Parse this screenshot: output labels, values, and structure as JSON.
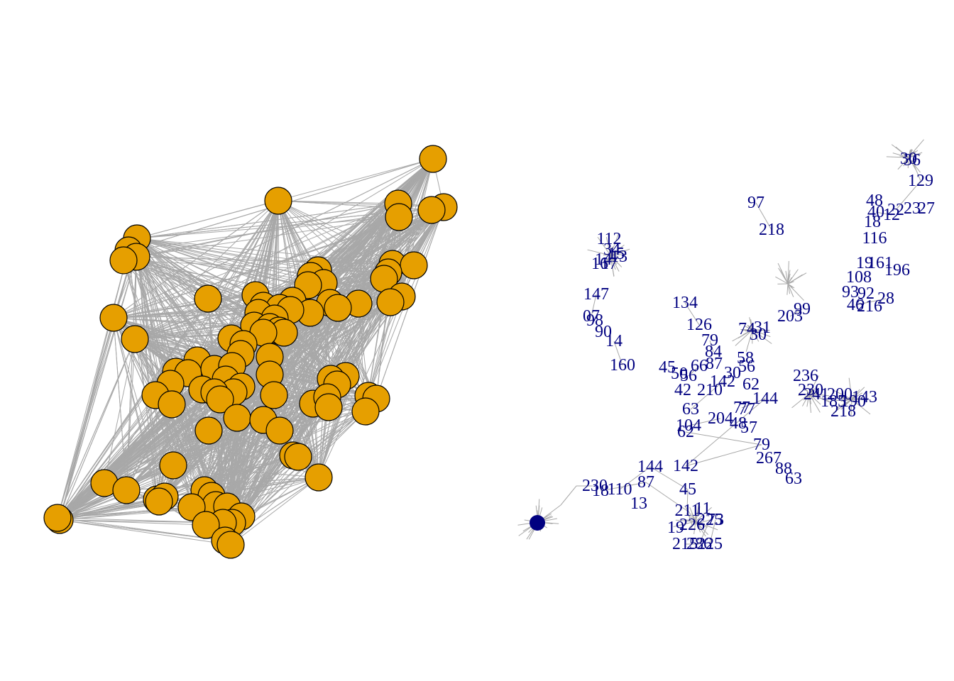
{
  "colors": {
    "edge": "#a8a8a8",
    "node_fill": "#e69f00",
    "node_border": "#000000",
    "label": "#000080",
    "background": "#ffffff"
  },
  "left_graph": {
    "vertex_label": "",
    "vertex_count": 110
  },
  "right_graph": {
    "labels": [
      "30",
      "36",
      "129",
      "48",
      "40",
      "22",
      "23",
      "27",
      "18",
      "12",
      "116",
      "97",
      "218",
      "112",
      "34",
      "14",
      "15",
      "16",
      "17",
      "13",
      "147",
      "07",
      "98",
      "90",
      "14",
      "160",
      "134",
      "126",
      "19",
      "161",
      "196",
      "108",
      "46",
      "93",
      "92",
      "216",
      "28",
      "203",
      "99",
      "79",
      "84",
      "30",
      "87",
      "58",
      "66",
      "56",
      "45",
      "50",
      "62",
      "56",
      "31",
      "74",
      "30",
      "142",
      "42",
      "210",
      "63",
      "104",
      "204",
      "48",
      "57",
      "77",
      "77",
      "144",
      "142",
      "62",
      "79",
      "267",
      "88",
      "63",
      "230",
      "236",
      "241",
      "218",
      "190",
      "185",
      "143",
      "200",
      "230",
      "110",
      "18",
      "144",
      "87",
      "45",
      "211",
      "226",
      "225",
      "286",
      "215",
      "225",
      "73",
      "11",
      "19",
      "13"
    ]
  }
}
